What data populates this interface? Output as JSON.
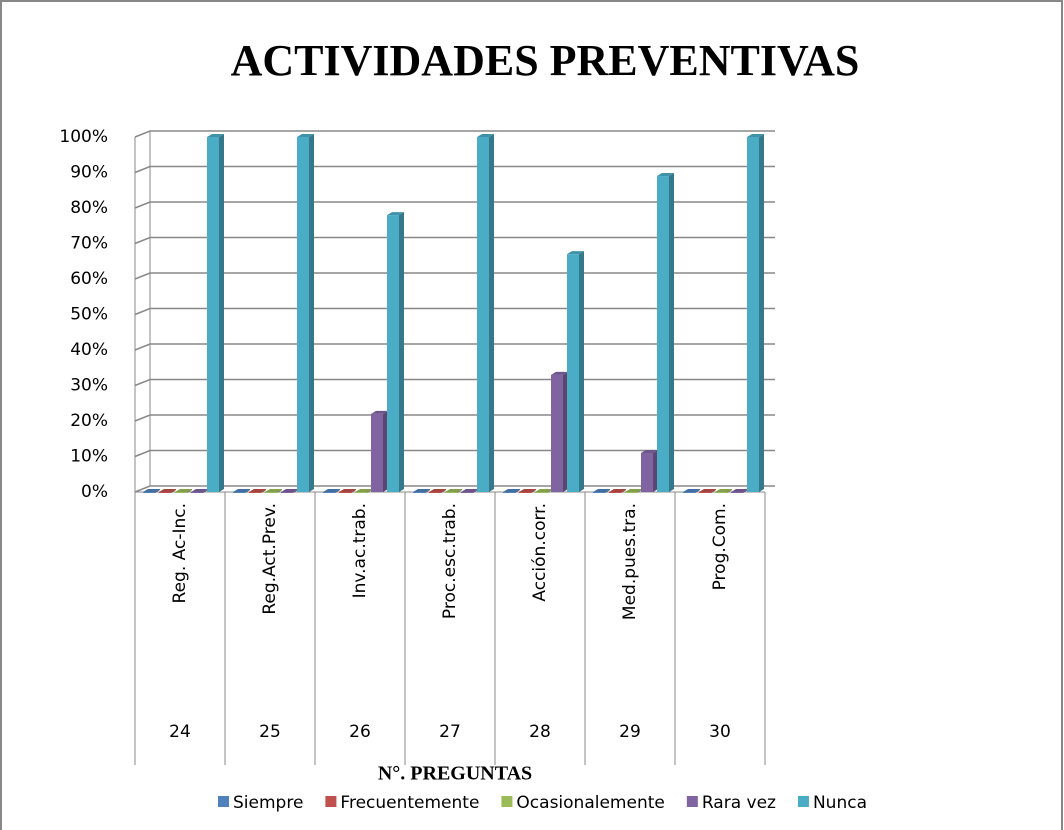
{
  "chart_data": {
    "type": "bar3d",
    "title": "ACTIVIDADES PREVENTIVAS",
    "x_label": "N°. PREGUNTAS",
    "categories": [
      "Reg. Ac-Inc.",
      "Reg.Act.Prev.",
      "Inv.ac.trab.",
      "Proc.esc.trab.",
      "Acción.corr.",
      "Med.pues.tra.",
      "Prog.Com."
    ],
    "category_groups": [
      "24",
      "25",
      "26",
      "27",
      "28",
      "29",
      "30"
    ],
    "series": [
      {
        "name": "Siempre",
        "color": "#4f81bd",
        "values": [
          0,
          0,
          0,
          0,
          0,
          0,
          0
        ]
      },
      {
        "name": "Frecuentemente",
        "color": "#c0504d",
        "values": [
          0,
          0,
          0,
          0,
          0,
          0,
          0
        ]
      },
      {
        "name": "Ocasionalemente",
        "color": "#9bbb59",
        "values": [
          0,
          0,
          0,
          0,
          0,
          0,
          0
        ]
      },
      {
        "name": "Rara vez",
        "color": "#8064a2",
        "values": [
          0,
          0,
          22,
          0,
          33,
          11,
          0
        ]
      },
      {
        "name": "Nunca",
        "color": "#4bacc6",
        "values": [
          100,
          100,
          78,
          100,
          67,
          89,
          100
        ]
      }
    ],
    "ylim": [
      0,
      100
    ],
    "yticks": [
      {
        "value": 0,
        "label": "0%"
      },
      {
        "value": 10,
        "label": "10%"
      },
      {
        "value": 20,
        "label": "20%"
      },
      {
        "value": 30,
        "label": "30%"
      },
      {
        "value": 40,
        "label": "40%"
      },
      {
        "value": 50,
        "label": "50%"
      },
      {
        "value": 60,
        "label": "60%"
      },
      {
        "value": 70,
        "label": "70%"
      },
      {
        "value": 80,
        "label": "80%"
      },
      {
        "value": 90,
        "label": "90%"
      },
      {
        "value": 100,
        "label": "100%"
      }
    ],
    "grid": true,
    "legend": "bottom"
  }
}
